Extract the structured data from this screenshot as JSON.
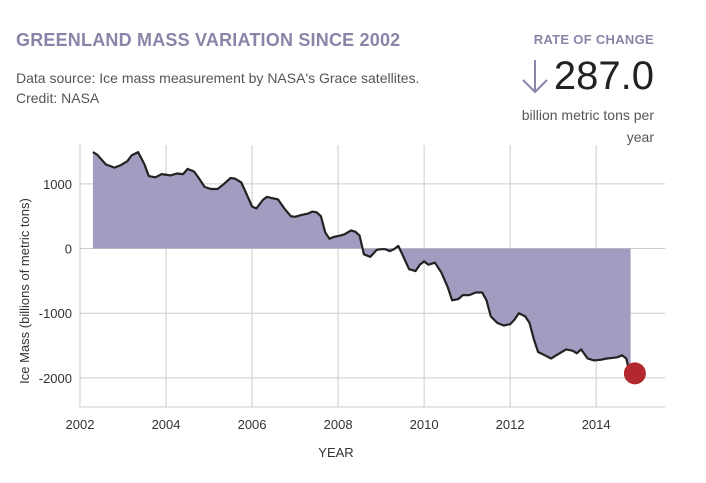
{
  "header": {
    "title": "GREENLAND MASS VARIATION SINCE 2002",
    "source_line1": "Data source: Ice mass measurement by NASA's Grace satellites.",
    "source_line2": "Credit: NASA"
  },
  "rate": {
    "label": "RATE OF CHANGE",
    "value": "287.0",
    "unit_line1": "billion metric tons per",
    "unit_line2": "year",
    "arrow_icon": "down-arrow-icon"
  },
  "colors": {
    "fill": "#a29cc0",
    "line": "#222222",
    "marker": "#b3282d",
    "grid": "#cccccc",
    "accent": "#8a84a8"
  },
  "chart_data": {
    "type": "area",
    "title": "GREENLAND MASS VARIATION SINCE 2002",
    "xlabel": "YEAR",
    "ylabel": "Ice Mass (billions of metric tons)",
    "xlim": [
      2002,
      2015.6
    ],
    "ylim": [
      -2450,
      1600
    ],
    "xticks": [
      2002,
      2004,
      2006,
      2008,
      2010,
      2012,
      2014
    ],
    "yticks": [
      1000,
      0,
      -1000,
      -2000
    ],
    "xtick_labels": [
      "2002",
      "2004",
      "2006",
      "2008",
      "2010",
      "2012",
      "2014"
    ],
    "ytick_labels": [
      "1000",
      "0",
      "-1000",
      "-2000"
    ],
    "grid": true,
    "series": [
      {
        "name": "Ice Mass",
        "x": [
          2002.3,
          2002.4,
          2002.6,
          2002.8,
          2002.95,
          2003.1,
          2003.2,
          2003.35,
          2003.5,
          2003.6,
          2003.75,
          2003.9,
          2004.1,
          2004.25,
          2004.4,
          2004.5,
          2004.65,
          2004.75,
          2004.9,
          2005.05,
          2005.2,
          2005.35,
          2005.5,
          2005.6,
          2005.75,
          2005.9,
          2006.0,
          2006.1,
          2006.25,
          2006.35,
          2006.45,
          2006.6,
          2006.75,
          2006.9,
          2007.0,
          2007.15,
          2007.3,
          2007.4,
          2007.5,
          2007.6,
          2007.7,
          2007.8,
          2007.9,
          2008.05,
          2008.15,
          2008.3,
          2008.4,
          2008.5,
          2008.6,
          2008.75,
          2008.9,
          2009.0,
          2009.1,
          2009.2,
          2009.3,
          2009.4,
          2009.5,
          2009.65,
          2009.8,
          2009.9,
          2010.0,
          2010.1,
          2010.25,
          2010.4,
          2010.55,
          2010.65,
          2010.8,
          2010.9,
          2011.05,
          2011.2,
          2011.35,
          2011.45,
          2011.55,
          2011.7,
          2011.85,
          2012.0,
          2012.1,
          2012.2,
          2012.35,
          2012.45,
          2012.55,
          2012.65,
          2012.8,
          2012.95,
          2013.15,
          2013.3,
          2013.45,
          2013.55,
          2013.65,
          2013.8,
          2013.95,
          2014.1,
          2014.25,
          2014.4,
          2014.5,
          2014.6,
          2014.7,
          2014.8
        ],
        "y": [
          1490,
          1450,
          1300,
          1250,
          1290,
          1350,
          1440,
          1490,
          1300,
          1120,
          1100,
          1150,
          1130,
          1160,
          1150,
          1230,
          1190,
          1100,
          950,
          920,
          920,
          1000,
          1090,
          1080,
          1020,
          800,
          650,
          620,
          750,
          800,
          780,
          760,
          620,
          500,
          490,
          520,
          540,
          570,
          560,
          500,
          250,
          150,
          180,
          200,
          220,
          280,
          260,
          200,
          -90,
          -130,
          -20,
          -10,
          -10,
          -40,
          -10,
          40,
          -100,
          -320,
          -350,
          -250,
          -200,
          -250,
          -220,
          -370,
          -600,
          -800,
          -780,
          -720,
          -720,
          -680,
          -680,
          -800,
          -1050,
          -1150,
          -1190,
          -1170,
          -1100,
          -1000,
          -1050,
          -1150,
          -1400,
          -1600,
          -1650,
          -1700,
          -1620,
          -1560,
          -1580,
          -1620,
          -1560,
          -1700,
          -1730,
          -1720,
          -1700,
          -1690,
          -1680,
          -1650,
          -1700,
          -2000
        ]
      }
    ],
    "marker": {
      "x": 2014.9,
      "y": -1930
    }
  }
}
